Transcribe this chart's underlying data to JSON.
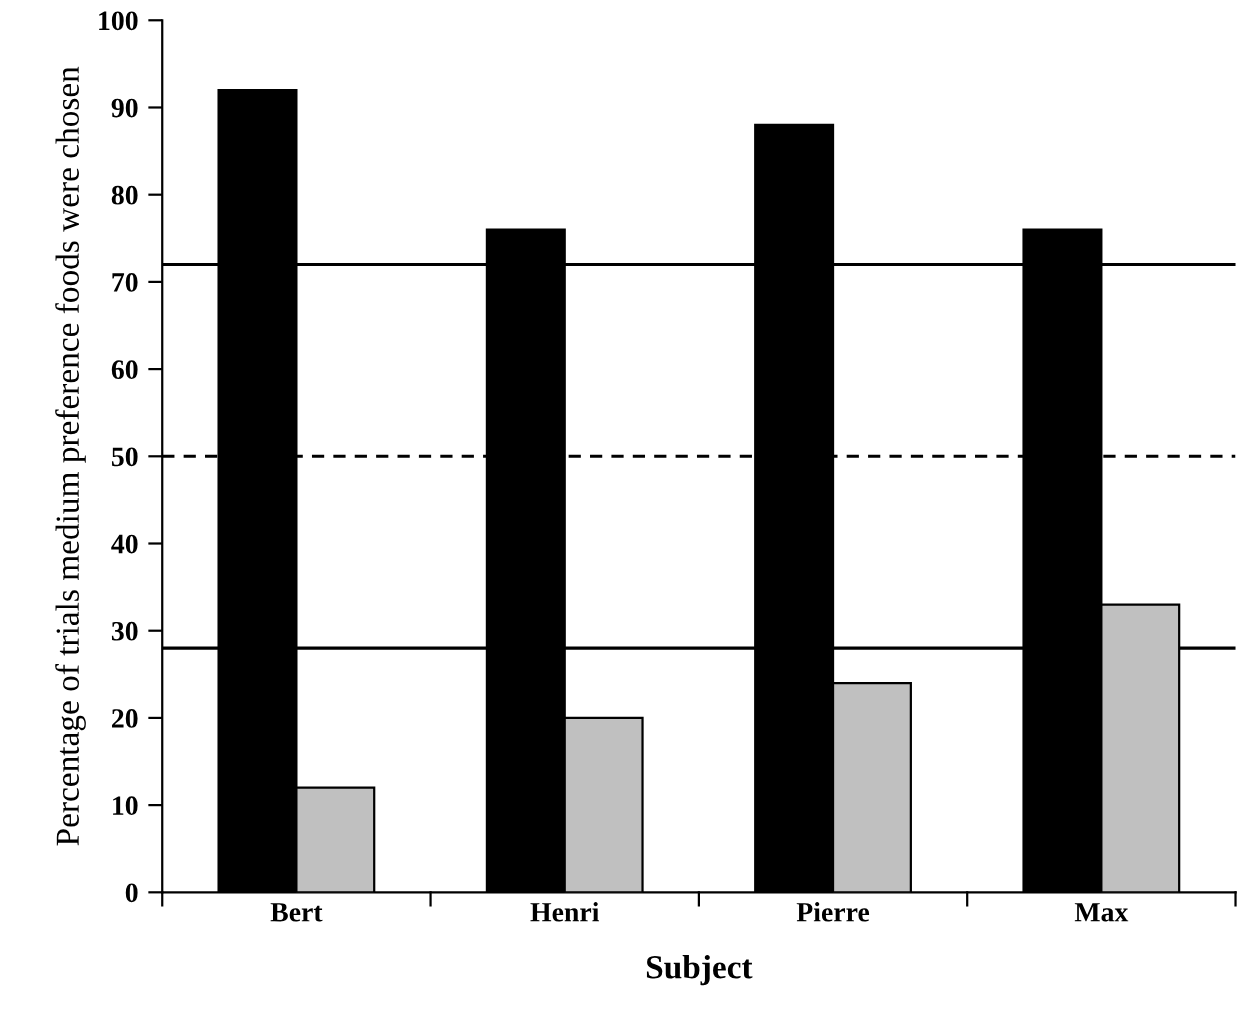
{
  "chart_data": {
    "type": "bar",
    "xlabel": "Subject",
    "ylabel": "Percentage of trials medium preference foods were chosen",
    "categories": [
      "Bert",
      "Henri",
      "Pierre",
      "Max"
    ],
    "series": [
      {
        "color": "#000000",
        "values": [
          92,
          76,
          88,
          76
        ]
      },
      {
        "color": "#c0c0c0",
        "values": [
          12,
          20,
          24,
          33
        ]
      }
    ],
    "ylim": [
      0,
      100
    ],
    "yticks": [
      0,
      10,
      20,
      30,
      40,
      50,
      60,
      70,
      80,
      90,
      100
    ],
    "grid": false,
    "legend": false,
    "ref_lines": [
      {
        "axis": "y",
        "value": 72,
        "color": "#000000",
        "line_style": "solid"
      },
      {
        "axis": "y",
        "value": 50,
        "color": "#000000",
        "line_style": "dashed"
      },
      {
        "axis": "y",
        "value": 28,
        "color": "#000000",
        "line_style": "solid"
      }
    ]
  }
}
